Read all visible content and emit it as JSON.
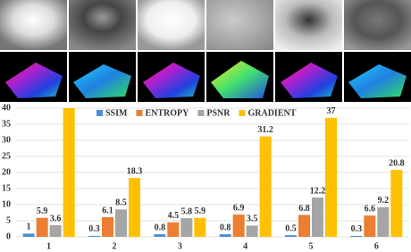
{
  "chart_data": {
    "type": "bar",
    "categories": [
      "1",
      "2",
      "3",
      "4",
      "5",
      "6"
    ],
    "series": [
      {
        "name": "SSIM",
        "color": "#4a8fd6",
        "values": [
          1,
          0.3,
          0.8,
          0.8,
          0.5,
          0.3
        ]
      },
      {
        "name": "ENTROPY",
        "color": "#ed7d31",
        "values": [
          5.9,
          6.1,
          4.5,
          6.9,
          6.8,
          6.6
        ]
      },
      {
        "name": "PSNR",
        "color": "#a5a5a5",
        "values": [
          3.6,
          8.5,
          5.8,
          3.5,
          12.2,
          9.2
        ]
      },
      {
        "name": "GRADIENT",
        "color": "#ffc000",
        "values": [
          40,
          18.3,
          5.9,
          31.2,
          37,
          20.8
        ],
        "value_labels": [
          null,
          "18.3",
          "5.9",
          "31.2",
          "37",
          "20.8"
        ]
      }
    ],
    "ylim": [
      0,
      40
    ],
    "yticks": [
      0,
      5,
      10,
      15,
      20,
      25,
      30,
      35,
      40
    ],
    "grid": true
  }
}
